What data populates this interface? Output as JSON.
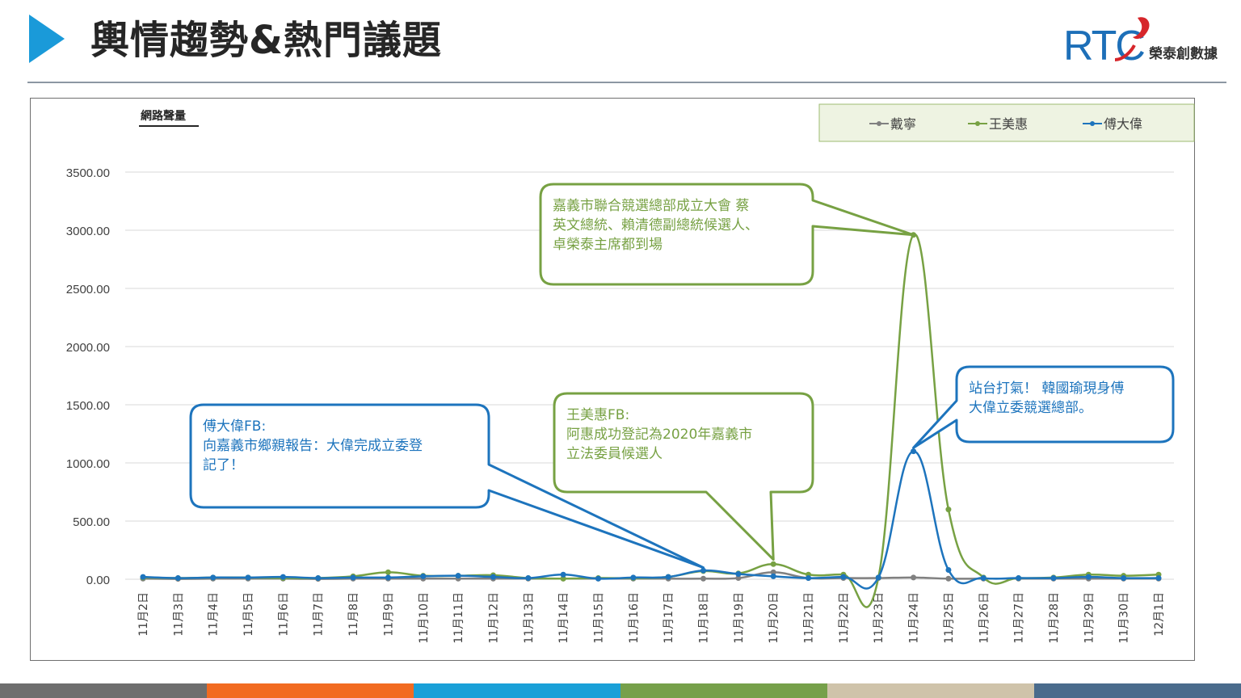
{
  "header": {
    "title": "輿情趨勢&熱門議題",
    "logo_letters": "RTC",
    "logo_text": "榮泰創數據"
  },
  "colors": {
    "accent_arrow": "#1a9ad9",
    "series_gray": "#808080",
    "series_green": "#77a143",
    "series_blue": "#1d74bd",
    "legend_bg": "#eef3e2",
    "callout_green_text": "#77a143",
    "callout_blue_text": "#1d74bd",
    "stripe": [
      "#6e6e6e",
      "#f26b21",
      "#1aa0d8",
      "#76a04a",
      "#cfc3aa",
      "#4a6b8c"
    ]
  },
  "chart_data": {
    "type": "line",
    "ylabel": "網路聲量",
    "ylim": [
      0,
      3500
    ],
    "yticks": [
      "0.00",
      "500.00",
      "1000.00",
      "1500.00",
      "2000.00",
      "2500.00",
      "3000.00",
      "3500.00"
    ],
    "ytick_values": [
      0,
      500,
      1000,
      1500,
      2000,
      2500,
      3000,
      3500
    ],
    "categories": [
      "11月2日",
      "11月3日",
      "11月4日",
      "11月5日",
      "11月6日",
      "11月7日",
      "11月8日",
      "11月9日",
      "11月10日",
      "11月11日",
      "11月12日",
      "11月13日",
      "11月14日",
      "11月15日",
      "11月16日",
      "11月17日",
      "11月18日",
      "11月19日",
      "11月20日",
      "11月21日",
      "11月22日",
      "11月23日",
      "11月24日",
      "11月25日",
      "11月26日",
      "11月27日",
      "11月28日",
      "11月29日",
      "11月30日",
      "12月1日"
    ],
    "legend_position": "top-right",
    "grid": true,
    "series": [
      {
        "name": "戴寧",
        "color": "#808080",
        "values": [
          5,
          3,
          5,
          5,
          5,
          3,
          5,
          5,
          5,
          5,
          5,
          5,
          5,
          5,
          5,
          5,
          5,
          10,
          60,
          10,
          10,
          10,
          15,
          5,
          5,
          5,
          5,
          5,
          5,
          5
        ]
      },
      {
        "name": "王美惠",
        "color": "#77a143",
        "values": [
          15,
          10,
          15,
          15,
          10,
          10,
          25,
          60,
          30,
          30,
          35,
          10,
          5,
          10,
          10,
          20,
          70,
          50,
          130,
          40,
          40,
          15,
          2960,
          600,
          15,
          10,
          15,
          40,
          30,
          40
        ]
      },
      {
        "name": "傅大偉",
        "color": "#1d74bd",
        "values": [
          20,
          10,
          15,
          15,
          20,
          10,
          15,
          15,
          25,
          30,
          20,
          10,
          40,
          5,
          15,
          20,
          75,
          45,
          25,
          10,
          20,
          15,
          1100,
          80,
          10,
          10,
          10,
          20,
          10,
          10
        ]
      }
    ],
    "annotations": [
      {
        "id": "green-top",
        "color": "#77a143",
        "lines": [
          "嘉義市聯合競選總部成立大會 蔡",
          "英文總統、賴清德副總統候選人、",
          "卓榮泰主席都到場"
        ],
        "target_index": 22,
        "target_value": 2960
      },
      {
        "id": "blue-left",
        "color": "#1d74bd",
        "lines": [
          "傅大偉FB:",
          "向嘉義市鄉親報告：大偉完成立委登",
          "記了！"
        ],
        "target_index": 16,
        "target_value": 100
      },
      {
        "id": "green-mid",
        "color": "#77a143",
        "lines": [
          "王美惠FB:",
          "阿惠成功登記為2020年嘉義市",
          "立法委員候選人"
        ],
        "target_index": 18,
        "target_value": 170
      },
      {
        "id": "blue-right",
        "color": "#1d74bd",
        "lines": [
          "站台打氣！ 韓國瑜現身傅",
          "大偉立委競選總部。"
        ],
        "target_index": 22,
        "target_value": 1130
      }
    ]
  }
}
